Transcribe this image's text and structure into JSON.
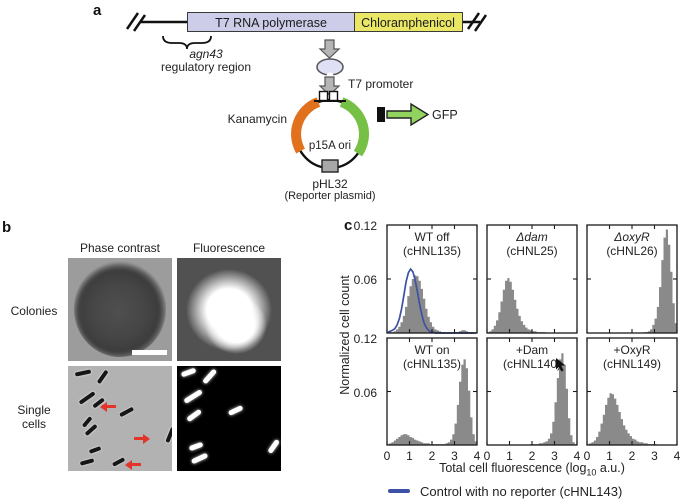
{
  "colors": {
    "gene1": "#cdcde9",
    "gene2": "#eae766",
    "oval": "#dfdff6",
    "orange": "#e2711d",
    "green": "#76c045",
    "gfp": "#92d35f",
    "grayarrow": "#b5b5b5",
    "term": "#a8a8a8",
    "red": "#e2342b",
    "blue": "#3d52a5",
    "hist_gray": "#8a8a8a"
  },
  "panel_a": {
    "label": "a",
    "gene1": "T7 RNA polymerase",
    "gene2": "Chloramphenicol",
    "reg_line1": "agn43",
    "reg_line2": "regulatory region",
    "promoter": "T7 promoter",
    "kanamycin": "Kanamycin",
    "ori": "p15A ori",
    "plasmid_name": "pHL32",
    "plasmid_sub": "(Reporter plasmid)",
    "gfp": "GFP"
  },
  "panel_b": {
    "label": "b",
    "col_headers": [
      "Phase contrast",
      "Fluorescence"
    ],
    "row_label_1": "Colonies",
    "row_label_2a": "Single",
    "row_label_2b": "cells",
    "single_cells_pc_rods": [
      [
        7,
        5,
        16,
        -12
      ],
      [
        27,
        9,
        15,
        -55
      ],
      [
        10,
        30,
        18,
        -35
      ],
      [
        24,
        35,
        13,
        -38
      ],
      [
        51,
        44,
        15,
        -28
      ],
      [
        13,
        54,
        12,
        -50
      ],
      [
        16,
        62,
        14,
        -42
      ],
      [
        94,
        67,
        16,
        -68
      ],
      [
        21,
        82,
        12,
        -20
      ],
      [
        12,
        94,
        14,
        -15
      ],
      [
        44,
        94,
        13,
        -28
      ]
    ],
    "single_cells_fl_rods": [
      [
        4,
        4,
        15,
        -20
      ],
      [
        24,
        8,
        17,
        -48
      ],
      [
        6,
        28,
        20,
        -32
      ],
      [
        9,
        47,
        16,
        -36
      ],
      [
        51,
        42,
        15,
        -25
      ],
      [
        12,
        78,
        14,
        -20
      ],
      [
        14,
        90,
        17,
        -25
      ],
      [
        89,
        78,
        15,
        -55
      ]
    ],
    "red_arrows": [
      [
        34,
        39,
        "left"
      ],
      [
        66,
        71,
        "right"
      ],
      [
        59,
        97,
        "left"
      ]
    ]
  },
  "panel_c": {
    "label": "c"
  },
  "chart_data": {
    "type": "bar",
    "layout": "2x3 small multiples of histograms",
    "xlabel": "Total cell fluorescence (log10 a.u.)",
    "xlabel_parts": {
      "pre": "Total cell fluorescence (log",
      "sub": "10",
      "post": " a.u.)"
    },
    "ylabel": "Normalized cell count",
    "xlim": [
      0,
      4
    ],
    "ylim": [
      0,
      0.12
    ],
    "xticks": [
      "0",
      "1",
      "2",
      "3",
      "4"
    ],
    "ytick_labels": [
      "0.12",
      "0.06"
    ],
    "bin_start": 0,
    "bin_width": 0.1,
    "bar_color": "#8a8a8a",
    "grid": false,
    "panels": [
      {
        "title": "WT off",
        "subtitle": "(cHNL135)",
        "italic": false,
        "values": [
          0,
          0.001,
          0.001,
          0.002,
          0.004,
          0.007,
          0.012,
          0.019,
          0.029,
          0.041,
          0.052,
          0.06,
          0.064,
          0.063,
          0.058,
          0.049,
          0.038,
          0.027,
          0.018,
          0.012,
          0.007,
          0.004,
          0.003,
          0.002,
          0.001,
          0.001,
          0,
          0,
          0,
          0,
          0.001,
          0.001,
          0.002,
          0.003,
          0.003,
          0.002,
          0.001,
          0.001,
          0,
          0
        ]
      },
      {
        "title": "Δdam",
        "subtitle": "(cHNL25)",
        "italic": true,
        "values": [
          0.001,
          0.002,
          0.004,
          0.008,
          0.014,
          0.023,
          0.035,
          0.048,
          0.058,
          0.061,
          0.057,
          0.048,
          0.037,
          0.027,
          0.019,
          0.013,
          0.009,
          0.006,
          0.004,
          0.003,
          0.002,
          0.002,
          0.001,
          0.001,
          0.001,
          0.001,
          0,
          0,
          0,
          0,
          0,
          0,
          0,
          0,
          0,
          0,
          0,
          0,
          0,
          0
        ]
      },
      {
        "title": "ΔoxyR",
        "subtitle": "(cHNL26)",
        "italic": true,
        "values": [
          0,
          0,
          0,
          0,
          0,
          0,
          0,
          0,
          0,
          0,
          0,
          0,
          0,
          0,
          0,
          0,
          0,
          0,
          0,
          0,
          0,
          0,
          0,
          0,
          0,
          0.001,
          0.001,
          0.002,
          0.004,
          0.009,
          0.016,
          0.029,
          0.051,
          0.081,
          0.106,
          0.115,
          0.098,
          0.068,
          0.033,
          0.011
        ]
      },
      {
        "title": "WT on",
        "subtitle": "(cHNL135)",
        "italic": false,
        "values": [
          0.001,
          0.002,
          0.003,
          0.005,
          0.007,
          0.009,
          0.011,
          0.012,
          0.012,
          0.011,
          0.009,
          0.008,
          0.006,
          0.005,
          0.004,
          0.003,
          0.002,
          0.002,
          0.002,
          0.001,
          0.001,
          0.001,
          0.001,
          0.001,
          0.001,
          0.001,
          0.002,
          0.003,
          0.006,
          0.012,
          0.024,
          0.045,
          0.071,
          0.09,
          0.096,
          0.086,
          0.061,
          0.031,
          0.012,
          0.004
        ]
      },
      {
        "title": "+Dam",
        "subtitle": "(cHNL140)",
        "italic": false,
        "values": [
          0,
          0,
          0,
          0,
          0,
          0,
          0,
          0,
          0,
          0,
          0,
          0,
          0,
          0,
          0,
          0,
          0,
          0,
          0,
          0.001,
          0.001,
          0.001,
          0.001,
          0.002,
          0.002,
          0.003,
          0.004,
          0.007,
          0.013,
          0.026,
          0.048,
          0.075,
          0.096,
          0.103,
          0.09,
          0.063,
          0.03,
          0.011,
          0.003,
          0.001
        ]
      },
      {
        "title": "+OxyR",
        "subtitle": "(cHNL149)",
        "italic": false,
        "values": [
          0.001,
          0.002,
          0.003,
          0.005,
          0.009,
          0.015,
          0.024,
          0.034,
          0.045,
          0.053,
          0.058,
          0.057,
          0.052,
          0.045,
          0.037,
          0.029,
          0.022,
          0.017,
          0.013,
          0.01,
          0.007,
          0.006,
          0.004,
          0.003,
          0.003,
          0.002,
          0.002,
          0.001,
          0.001,
          0.001,
          0.001,
          0,
          0,
          0,
          0,
          0,
          0,
          0,
          0,
          0
        ]
      }
    ],
    "control": {
      "label": "Control with no reporter (cHNL143)",
      "color": "#3d52a5",
      "panel_index": 0,
      "values": [
        0.001,
        0.002,
        0.003,
        0.005,
        0.009,
        0.016,
        0.027,
        0.042,
        0.057,
        0.067,
        0.071,
        0.068,
        0.059,
        0.046,
        0.032,
        0.02,
        0.011,
        0.006,
        0.003,
        0.001,
        0.001,
        0,
        0,
        0,
        0,
        0,
        0,
        0,
        0,
        0,
        0,
        0,
        0,
        0,
        0,
        0,
        0,
        0,
        0,
        0
      ]
    }
  }
}
